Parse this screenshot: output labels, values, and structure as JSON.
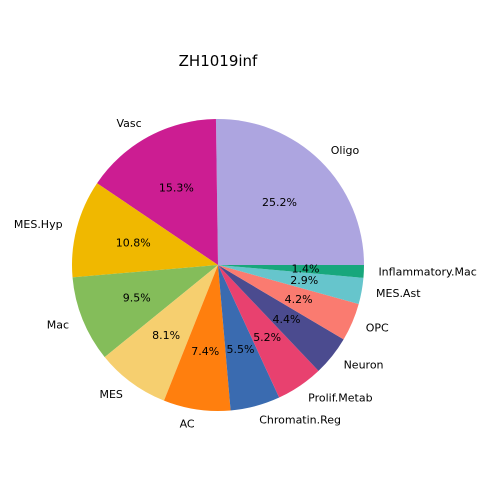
{
  "chart_data": {
    "type": "pie",
    "title": "ZH1019inf",
    "start_angle_deg": 0,
    "direction": "counterclockwise",
    "slices": [
      {
        "label": "Oligo",
        "value": 25.2,
        "pct_label": "25.2%",
        "color": "#ada5e0"
      },
      {
        "label": "Vasc",
        "value": 15.3,
        "pct_label": "15.3%",
        "color": "#cc1d92"
      },
      {
        "label": "MES.Hyp",
        "value": 10.8,
        "pct_label": "10.8%",
        "color": "#f0b800"
      },
      {
        "label": "Mac",
        "value": 9.5,
        "pct_label": "9.5%",
        "color": "#84bd5a"
      },
      {
        "label": "MES",
        "value": 8.1,
        "pct_label": "8.1%",
        "color": "#f6cf6f"
      },
      {
        "label": "AC",
        "value": 7.4,
        "pct_label": "7.4%",
        "color": "#ff7f0e"
      },
      {
        "label": "Chromatin.Reg",
        "value": 5.5,
        "pct_label": "5.5%",
        "color": "#3a6bb0"
      },
      {
        "label": "Prolif.Metab",
        "value": 5.2,
        "pct_label": "5.2%",
        "color": "#e8416f"
      },
      {
        "label": "Neuron",
        "value": 4.4,
        "pct_label": "4.4%",
        "color": "#4b4b8f"
      },
      {
        "label": "OPC",
        "value": 4.2,
        "pct_label": "4.2%",
        "color": "#fa7b70"
      },
      {
        "label": "MES.Ast",
        "value": 2.9,
        "pct_label": "2.9%",
        "color": "#66c5cc"
      },
      {
        "label": "Inflammatory.Mac",
        "value": 1.4,
        "pct_label": "1.4%",
        "color": "#18a77c"
      }
    ]
  }
}
